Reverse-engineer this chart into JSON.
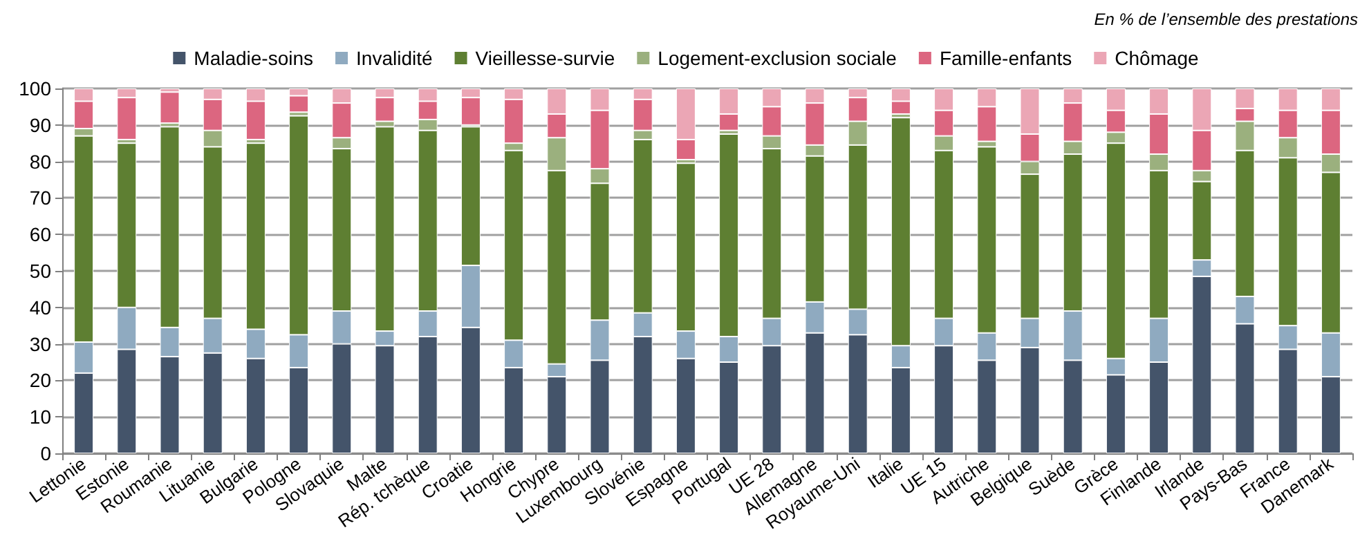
{
  "chart_data": {
    "type": "bar",
    "stacked": true,
    "annotations": [
      "En % de l’ensemble des prestations"
    ],
    "categories": [
      "Lettonie",
      "Estonie",
      "Roumanie",
      "Lituanie",
      "Bulgarie",
      "Pologne",
      "Slovaquie",
      "Malte",
      "Rép. tchèque",
      "Croatie",
      "Hongrie",
      "Chypre",
      "Luxembourg",
      "Slovénie",
      "Espagne",
      "Portugal",
      "UE 28",
      "Allemagne",
      "Royaume-Uni",
      "Italie",
      "UE 15",
      "Autriche",
      "Belgique",
      "Suède",
      "Grèce",
      "Finlande",
      "Irlande",
      "Pays-Bas",
      "France",
      "Danemark"
    ],
    "series": [
      {
        "name": "Maladie-soins",
        "color": "#44546a",
        "values": [
          22,
          28.5,
          26.5,
          27.5,
          26,
          23.5,
          30,
          29.5,
          32,
          34.5,
          23.5,
          21,
          25.5,
          32,
          26,
          25,
          29.5,
          33,
          32.5,
          23.5,
          29.5,
          25.5,
          29,
          25.5,
          21.5,
          25,
          48.5,
          35.5,
          28.5,
          21
        ]
      },
      {
        "name": "Invalidité",
        "color": "#8faac0",
        "values": [
          8.5,
          11.5,
          8,
          9.5,
          8,
          9,
          9,
          4,
          7,
          17,
          7.5,
          3.5,
          11,
          6.5,
          7.5,
          7,
          7.5,
          8.5,
          7,
          6,
          7.5,
          7.5,
          8,
          13.5,
          4.5,
          12,
          4.5,
          7.5,
          6.5,
          12
        ]
      },
      {
        "name": "Vieillesse-survie",
        "color": "#5e7f32",
        "values": [
          56.5,
          45,
          55,
          47,
          51,
          60,
          44.5,
          56,
          49.5,
          38,
          52,
          53,
          37.5,
          47.5,
          46,
          55.5,
          46.5,
          40,
          45,
          62.5,
          46,
          51,
          39.5,
          43,
          59,
          40.5,
          21.5,
          40,
          46,
          44
        ]
      },
      {
        "name": "Logement-exclusion sociale",
        "color": "#9bb07e",
        "values": [
          2,
          1,
          1,
          4.5,
          1,
          1,
          3,
          1.5,
          3,
          0.5,
          2,
          9,
          4,
          2.5,
          1,
          1,
          3.5,
          3,
          6.5,
          1,
          4,
          1.5,
          3.5,
          3.5,
          3,
          4.5,
          3,
          8,
          5.5,
          5
        ]
      },
      {
        "name": "Famille-enfants",
        "color": "#dc6680",
        "values": [
          7.5,
          11.5,
          8.5,
          8.5,
          10.5,
          4.5,
          9.5,
          6.5,
          5,
          7.5,
          12,
          6.5,
          16,
          8.5,
          5.5,
          4.5,
          8,
          11.5,
          6.5,
          3.5,
          7,
          9.5,
          7.5,
          10.5,
          6,
          11,
          11,
          3.5,
          7.5,
          12
        ]
      },
      {
        "name": "Chômage",
        "color": "#eba6b5",
        "values": [
          3.5,
          2.5,
          1,
          3,
          3.5,
          2,
          4,
          2.5,
          3.5,
          2.5,
          3,
          7,
          6,
          3,
          14,
          7,
          5,
          4,
          2.5,
          3.5,
          6,
          5,
          12.5,
          4,
          6,
          7,
          11.5,
          5.5,
          6,
          6
        ]
      }
    ],
    "ylim": [
      0,
      100
    ],
    "yticks": [
      0,
      10,
      20,
      30,
      40,
      50,
      60,
      70,
      80,
      90,
      100
    ],
    "grid": "y",
    "legend": "top"
  }
}
